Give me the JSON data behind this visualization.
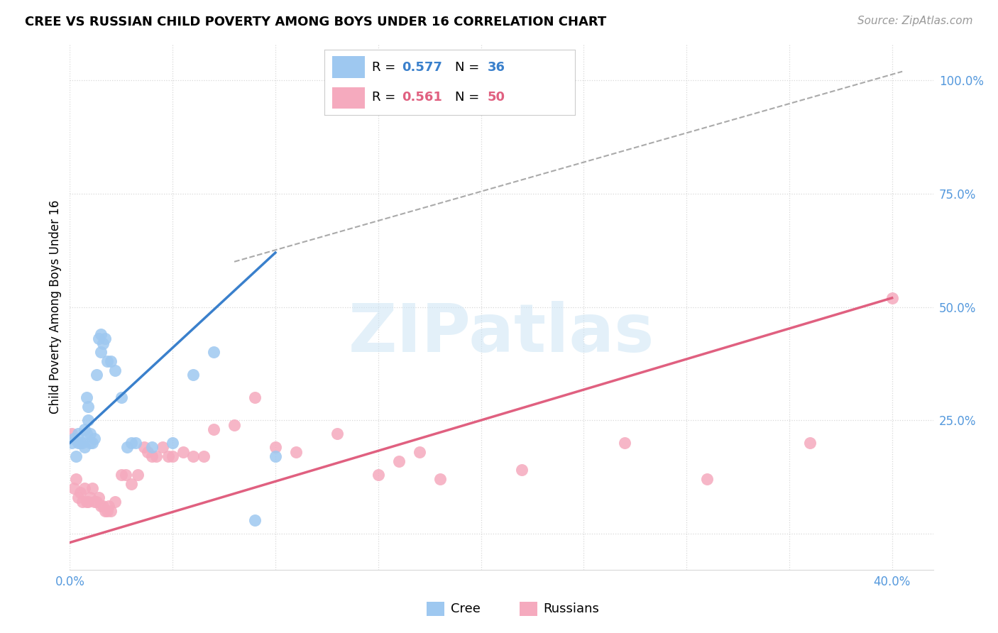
{
  "title": "CREE VS RUSSIAN CHILD POVERTY AMONG BOYS UNDER 16 CORRELATION CHART",
  "source": "Source: ZipAtlas.com",
  "ylabel": "Child Poverty Among Boys Under 16",
  "xlim": [
    0.0,
    0.42
  ],
  "ylim": [
    -0.08,
    1.08
  ],
  "xticks": [
    0.0,
    0.05,
    0.1,
    0.15,
    0.2,
    0.25,
    0.3,
    0.35,
    0.4
  ],
  "yticks": [
    0.0,
    0.25,
    0.5,
    0.75,
    1.0
  ],
  "ytick_labels": [
    "",
    "25.0%",
    "50.0%",
    "75.0%",
    "100.0%"
  ],
  "cree_color": "#9ec8f0",
  "russian_color": "#f5aabe",
  "cree_line_color": "#3a80cc",
  "russian_line_color": "#e06080",
  "cree_R": "0.577",
  "cree_N": "36",
  "russian_R": "0.561",
  "russian_N": "50",
  "watermark": "ZIPatlas",
  "cree_scatter": [
    [
      0.001,
      0.2
    ],
    [
      0.002,
      0.21
    ],
    [
      0.003,
      0.17
    ],
    [
      0.004,
      0.2
    ],
    [
      0.004,
      0.22
    ],
    [
      0.005,
      0.2
    ],
    [
      0.006,
      0.2
    ],
    [
      0.007,
      0.19
    ],
    [
      0.007,
      0.23
    ],
    [
      0.008,
      0.22
    ],
    [
      0.008,
      0.3
    ],
    [
      0.009,
      0.28
    ],
    [
      0.009,
      0.25
    ],
    [
      0.01,
      0.22
    ],
    [
      0.01,
      0.2
    ],
    [
      0.011,
      0.2
    ],
    [
      0.012,
      0.21
    ],
    [
      0.013,
      0.35
    ],
    [
      0.014,
      0.43
    ],
    [
      0.015,
      0.44
    ],
    [
      0.015,
      0.4
    ],
    [
      0.016,
      0.42
    ],
    [
      0.017,
      0.43
    ],
    [
      0.018,
      0.38
    ],
    [
      0.02,
      0.38
    ],
    [
      0.022,
      0.36
    ],
    [
      0.025,
      0.3
    ],
    [
      0.028,
      0.19
    ],
    [
      0.03,
      0.2
    ],
    [
      0.032,
      0.2
    ],
    [
      0.04,
      0.19
    ],
    [
      0.05,
      0.2
    ],
    [
      0.06,
      0.35
    ],
    [
      0.07,
      0.4
    ],
    [
      0.09,
      0.03
    ],
    [
      0.1,
      0.17
    ]
  ],
  "russian_scatter": [
    [
      0.001,
      0.22
    ],
    [
      0.002,
      0.1
    ],
    [
      0.003,
      0.12
    ],
    [
      0.004,
      0.08
    ],
    [
      0.005,
      0.09
    ],
    [
      0.006,
      0.07
    ],
    [
      0.007,
      0.1
    ],
    [
      0.008,
      0.07
    ],
    [
      0.009,
      0.07
    ],
    [
      0.01,
      0.08
    ],
    [
      0.011,
      0.1
    ],
    [
      0.012,
      0.07
    ],
    [
      0.013,
      0.07
    ],
    [
      0.014,
      0.08
    ],
    [
      0.015,
      0.06
    ],
    [
      0.016,
      0.06
    ],
    [
      0.017,
      0.05
    ],
    [
      0.018,
      0.05
    ],
    [
      0.019,
      0.06
    ],
    [
      0.02,
      0.05
    ],
    [
      0.022,
      0.07
    ],
    [
      0.025,
      0.13
    ],
    [
      0.027,
      0.13
    ],
    [
      0.03,
      0.11
    ],
    [
      0.033,
      0.13
    ],
    [
      0.036,
      0.19
    ],
    [
      0.038,
      0.18
    ],
    [
      0.04,
      0.17
    ],
    [
      0.042,
      0.17
    ],
    [
      0.045,
      0.19
    ],
    [
      0.048,
      0.17
    ],
    [
      0.05,
      0.17
    ],
    [
      0.055,
      0.18
    ],
    [
      0.06,
      0.17
    ],
    [
      0.065,
      0.17
    ],
    [
      0.07,
      0.23
    ],
    [
      0.08,
      0.24
    ],
    [
      0.09,
      0.3
    ],
    [
      0.1,
      0.19
    ],
    [
      0.11,
      0.18
    ],
    [
      0.13,
      0.22
    ],
    [
      0.15,
      0.13
    ],
    [
      0.16,
      0.16
    ],
    [
      0.17,
      0.18
    ],
    [
      0.18,
      0.12
    ],
    [
      0.22,
      0.14
    ],
    [
      0.27,
      0.2
    ],
    [
      0.31,
      0.12
    ],
    [
      0.36,
      0.2
    ],
    [
      0.4,
      0.52
    ]
  ],
  "cree_line": {
    "x0": 0.0,
    "y0": 0.2,
    "x1": 0.1,
    "y1": 0.62
  },
  "russian_line": {
    "x0": 0.0,
    "y0": -0.02,
    "x1": 0.4,
    "y1": 0.52
  },
  "diag_line": {
    "x0": 0.08,
    "y0": 0.6,
    "x1": 0.405,
    "y1": 1.02
  },
  "grid_color": "#d8d8d8",
  "tick_label_color": "#5599dd",
  "title_fontsize": 13,
  "source_fontsize": 11,
  "axis_label_fontsize": 12,
  "tick_fontsize": 12,
  "legend_fontsize": 13
}
